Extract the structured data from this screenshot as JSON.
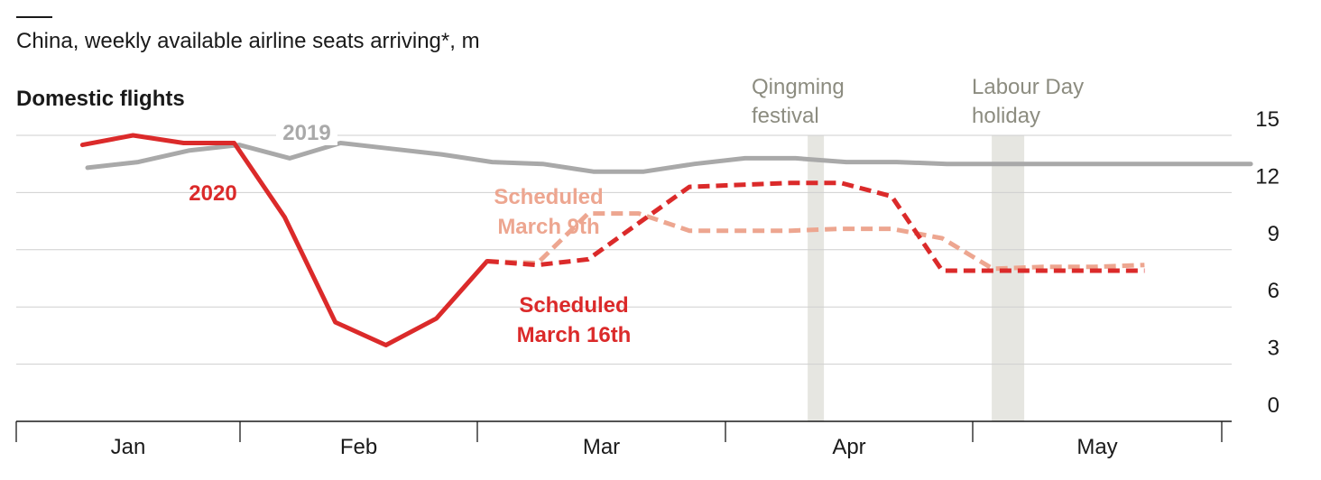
{
  "title": "China, weekly available airline seats arriving*, m",
  "subtitle": "Domestic flights",
  "chart_data": {
    "type": "line",
    "ylim": [
      0,
      15
    ],
    "yticks": [
      "0",
      "3",
      "6",
      "9",
      "12",
      "15"
    ],
    "months": [
      "Jan",
      "Feb",
      "Mar",
      "Apr",
      "May"
    ],
    "x_unit": "weeks",
    "events": [
      {
        "label_lines": [
          "Qingming",
          "festival"
        ],
        "x": 14.4
      },
      {
        "label_lines": [
          "Labour Day",
          "holiday"
        ],
        "x": 18.2
      }
    ],
    "series": [
      {
        "name": "2019",
        "color": "#a9a9a9",
        "style": "solid",
        "label_lines": [
          "2019"
        ],
        "x": [
          0,
          1,
          2,
          3,
          4,
          5,
          6,
          7,
          8,
          9,
          10,
          11,
          12,
          13,
          14,
          15,
          16,
          17,
          18,
          19,
          20,
          21,
          22,
          23
        ],
        "y": [
          13.3,
          13.6,
          14.2,
          14.5,
          13.8,
          14.6,
          14.3,
          14.0,
          13.6,
          13.5,
          13.1,
          13.1,
          13.5,
          13.8,
          13.8,
          13.6,
          13.6,
          13.5,
          13.5,
          13.5,
          13.5,
          13.5,
          13.5,
          13.5
        ]
      },
      {
        "name": "2020",
        "color": "#db2a2a",
        "style": "solid",
        "label_lines": [
          "2020"
        ],
        "x": [
          -0.1,
          0.9,
          1.9,
          2.9,
          3.9,
          4.9,
          5.9,
          6.9,
          7.9
        ],
        "y": [
          14.5,
          15.0,
          14.6,
          14.6,
          10.7,
          5.2,
          4.0,
          5.4,
          8.4
        ]
      },
      {
        "name": "Scheduled March 9th",
        "color": "#eda690",
        "style": "dashed",
        "label_lines": [
          "Scheduled",
          "March 9th"
        ],
        "x": [
          7.9,
          8.9,
          9.9,
          10.9,
          11.9,
          12.9,
          13.9,
          14.9,
          15.9,
          16.9,
          17.9,
          18.9,
          19.9,
          20.9
        ],
        "y": [
          8.4,
          8.3,
          10.9,
          10.9,
          10.0,
          10.0,
          10.0,
          10.1,
          10.1,
          9.6,
          8.0,
          8.1,
          8.1,
          8.2
        ]
      },
      {
        "name": "Scheduled March 16th",
        "color": "#db2a2a",
        "style": "dashed",
        "label_lines": [
          "Scheduled",
          "March 16th"
        ],
        "x": [
          7.9,
          8.9,
          9.9,
          10.9,
          11.9,
          12.9,
          13.9,
          14.9,
          15.9,
          16.9,
          17.9,
          18.9,
          19.9,
          20.9
        ],
        "y": [
          8.4,
          8.2,
          8.5,
          10.4,
          12.3,
          12.4,
          12.5,
          12.5,
          11.8,
          7.9,
          7.9,
          7.9,
          7.9,
          7.9
        ]
      }
    ]
  }
}
